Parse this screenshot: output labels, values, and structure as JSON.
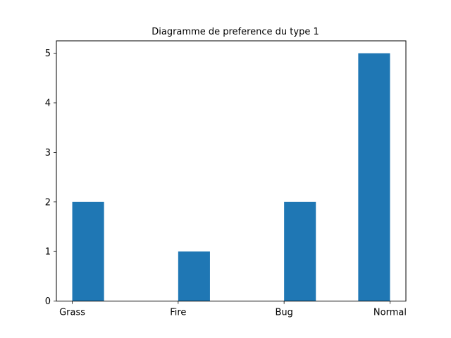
{
  "chart_data": {
    "type": "bar",
    "title": "Diagramme de preference du type 1",
    "categories": [
      "Grass",
      "Fire",
      "Bug",
      "Normal"
    ],
    "values": [
      2,
      1,
      2,
      5
    ],
    "xlabel": "",
    "ylabel": "",
    "ylim": [
      0,
      5.25
    ],
    "yticks": [
      0,
      1,
      2,
      3,
      4,
      5
    ],
    "grid": false,
    "bar_color": "#1f77b4"
  }
}
